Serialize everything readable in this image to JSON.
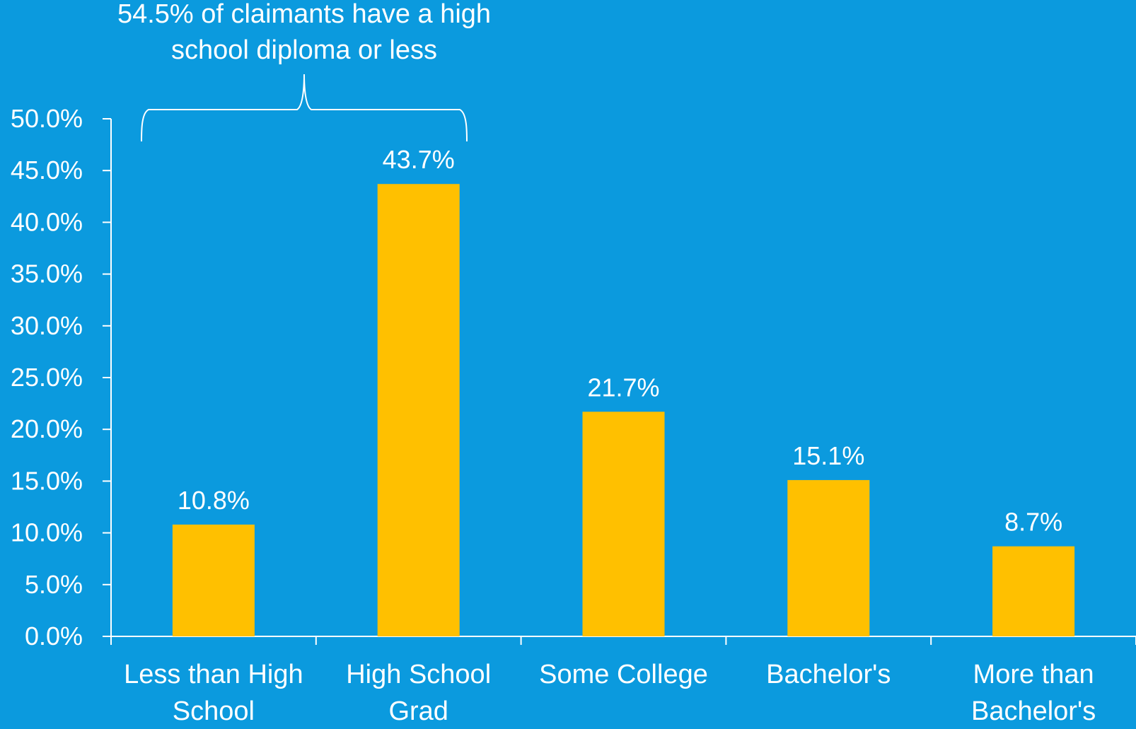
{
  "colors": {
    "background": "#0b9ade",
    "bar": "#ffc000",
    "text": "#ffffff",
    "axis": "#ffffff"
  },
  "annotation": {
    "line1": "54.5% of claimants have a high",
    "line2": "school diploma or less"
  },
  "chart_data": {
    "type": "bar",
    "categories": [
      [
        "Less than High",
        "School"
      ],
      [
        "High School",
        "Grad"
      ],
      [
        "Some College"
      ],
      [
        "Bachelor's"
      ],
      [
        "More than",
        "Bachelor's"
      ]
    ],
    "values": [
      10.8,
      43.7,
      21.7,
      15.1,
      8.7
    ],
    "value_labels": [
      "10.8%",
      "43.7%",
      "21.7%",
      "15.1%",
      "8.7%"
    ],
    "yticks": [
      0,
      5,
      10,
      15,
      20,
      25,
      30,
      35,
      40,
      45,
      50
    ],
    "ytick_labels": [
      "0.0%",
      "5.0%",
      "10.0%",
      "15.0%",
      "20.0%",
      "25.0%",
      "30.0%",
      "35.0%",
      "40.0%",
      "45.0%",
      "50.0%"
    ],
    "ylim": [
      0,
      50
    ],
    "grid": false,
    "legend": "none",
    "title": "",
    "xlabel": "",
    "ylabel": ""
  }
}
